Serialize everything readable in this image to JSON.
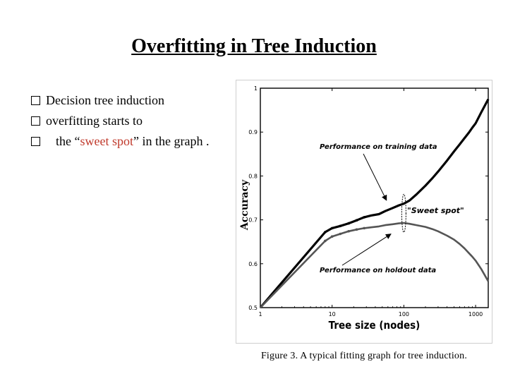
{
  "slide": {
    "title": "Overfitting in Tree Induction",
    "bullets": [
      {
        "text": "Decision tree induction"
      },
      {
        "text": "overfitting starts to"
      },
      {
        "pre": "the “",
        "highlight": "sweet spot",
        "post": "” in the graph ."
      }
    ],
    "highlight_color": "#c0392b",
    "bullet_icon": "hollow-square-bullet-icon",
    "caption": "Figure 3. A typical fitting graph for tree induction."
  },
  "chart_data": {
    "type": "line",
    "title": "",
    "xlabel": "Tree size (nodes)",
    "ylabel": "Accuracy",
    "x_scale": "log",
    "xlim": [
      1,
      1500
    ],
    "ylim": [
      0.5,
      1.0
    ],
    "x_ticks": [
      {
        "value": 1,
        "label": "1"
      },
      {
        "value": 10,
        "label": "10"
      },
      {
        "value": 100,
        "label": "100"
      },
      {
        "value": 1000,
        "label": "1000"
      }
    ],
    "y_ticks": [
      {
        "value": 0.5,
        "label": "0.5"
      },
      {
        "value": 0.6,
        "label": "0.6"
      },
      {
        "value": 0.7,
        "label": "0.7"
      },
      {
        "value": 0.8,
        "label": "0.8"
      },
      {
        "value": 0.9,
        "label": "0.9"
      },
      {
        "value": 1.0,
        "label": "1"
      }
    ],
    "grid": false,
    "series": [
      {
        "name": "Performance on training data",
        "color": "#000000",
        "points": [
          {
            "x": 1,
            "y": 0.5
          },
          {
            "x": 8,
            "y": 0.672
          },
          {
            "x": 10,
            "y": 0.681
          },
          {
            "x": 13,
            "y": 0.686
          },
          {
            "x": 17,
            "y": 0.692
          },
          {
            "x": 22,
            "y": 0.699
          },
          {
            "x": 28,
            "y": 0.706
          },
          {
            "x": 35,
            "y": 0.71
          },
          {
            "x": 45,
            "y": 0.713
          },
          {
            "x": 55,
            "y": 0.72
          },
          {
            "x": 70,
            "y": 0.727
          },
          {
            "x": 85,
            "y": 0.733
          },
          {
            "x": 100,
            "y": 0.737
          },
          {
            "x": 120,
            "y": 0.744
          },
          {
            "x": 150,
            "y": 0.758
          },
          {
            "x": 200,
            "y": 0.778
          },
          {
            "x": 250,
            "y": 0.795
          },
          {
            "x": 300,
            "y": 0.81
          },
          {
            "x": 400,
            "y": 0.835
          },
          {
            "x": 500,
            "y": 0.856
          },
          {
            "x": 600,
            "y": 0.872
          },
          {
            "x": 700,
            "y": 0.886
          },
          {
            "x": 800,
            "y": 0.898
          },
          {
            "x": 900,
            "y": 0.91
          },
          {
            "x": 1000,
            "y": 0.92
          },
          {
            "x": 1200,
            "y": 0.945
          },
          {
            "x": 1500,
            "y": 0.975
          }
        ]
      },
      {
        "name": "Performance on holdout data",
        "color": "#555555",
        "points": [
          {
            "x": 1,
            "y": 0.5
          },
          {
            "x": 8,
            "y": 0.652
          },
          {
            "x": 10,
            "y": 0.662
          },
          {
            "x": 13,
            "y": 0.668
          },
          {
            "x": 17,
            "y": 0.674
          },
          {
            "x": 22,
            "y": 0.678
          },
          {
            "x": 28,
            "y": 0.681
          },
          {
            "x": 35,
            "y": 0.683
          },
          {
            "x": 45,
            "y": 0.685
          },
          {
            "x": 55,
            "y": 0.688
          },
          {
            "x": 70,
            "y": 0.69
          },
          {
            "x": 85,
            "y": 0.692
          },
          {
            "x": 100,
            "y": 0.693
          },
          {
            "x": 120,
            "y": 0.691
          },
          {
            "x": 150,
            "y": 0.688
          },
          {
            "x": 200,
            "y": 0.684
          },
          {
            "x": 250,
            "y": 0.679
          },
          {
            "x": 300,
            "y": 0.674
          },
          {
            "x": 400,
            "y": 0.664
          },
          {
            "x": 500,
            "y": 0.655
          },
          {
            "x": 600,
            "y": 0.645
          },
          {
            "x": 700,
            "y": 0.635
          },
          {
            "x": 800,
            "y": 0.625
          },
          {
            "x": 900,
            "y": 0.616
          },
          {
            "x": 1000,
            "y": 0.607
          },
          {
            "x": 1200,
            "y": 0.588
          },
          {
            "x": 1500,
            "y": 0.56
          }
        ]
      }
    ],
    "annotations": [
      {
        "text": "Performance on training data",
        "target": {
          "x": 90,
          "y": 0.735
        }
      },
      {
        "text": "\"Sweet spot\"",
        "target": {
          "x": 100,
          "y": 0.715
        }
      },
      {
        "text": "Performance on holdout data",
        "target": {
          "x": 55,
          "y": 0.687
        }
      }
    ]
  }
}
